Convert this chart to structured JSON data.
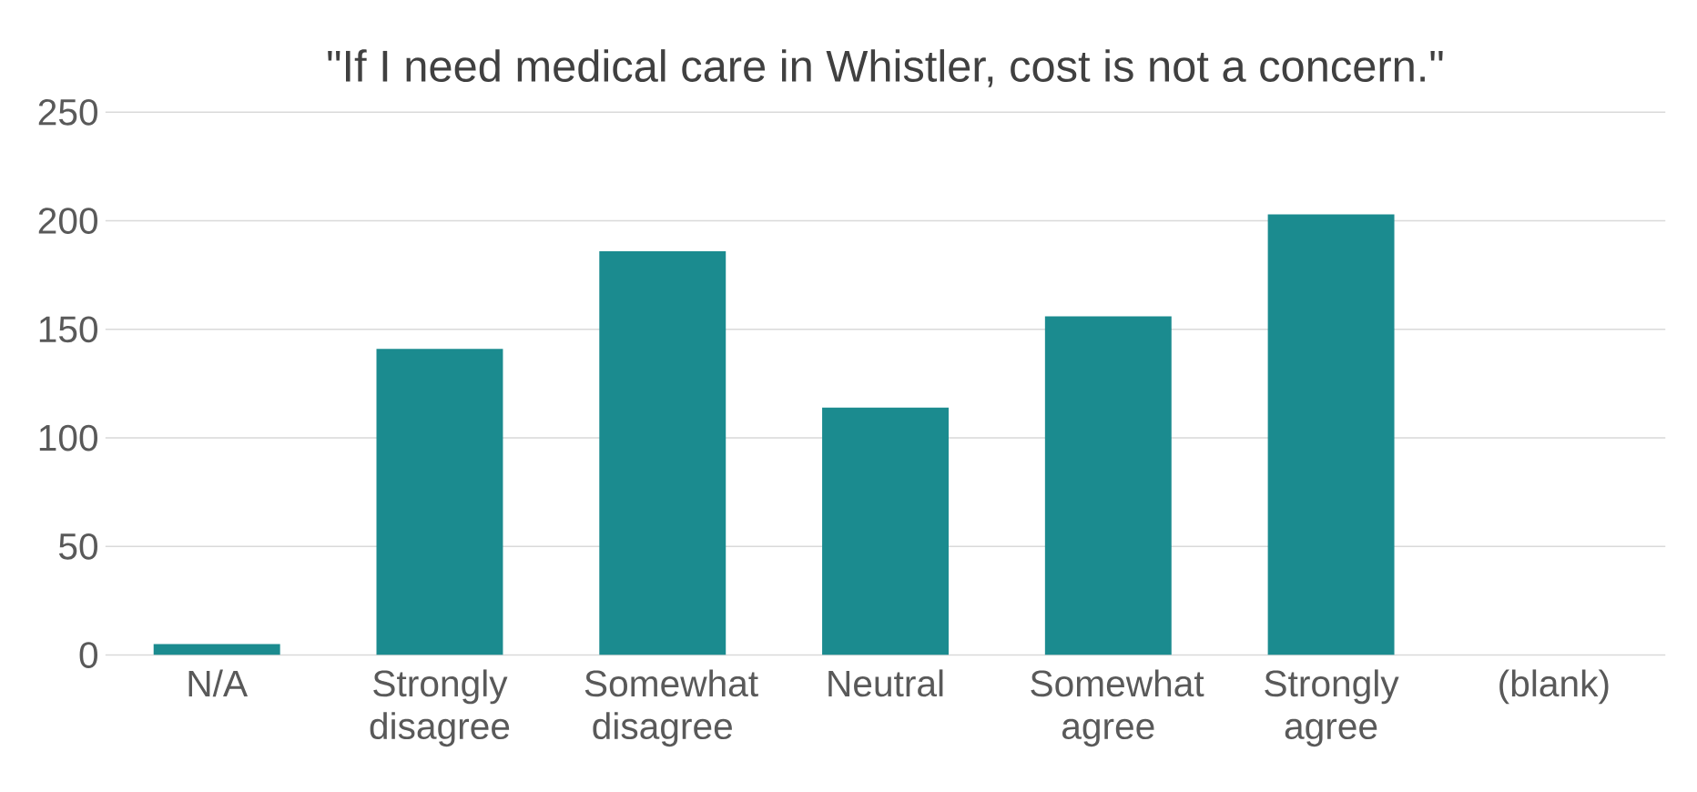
{
  "chart_data": {
    "type": "bar",
    "title": "\"If I need medical care in Whistler, cost is not a concern.\"",
    "categories": [
      "N/A",
      "Strongly disagree",
      "Somewhat disagree",
      "Neutral",
      "Somewhat agree",
      "Strongly agree",
      "(blank)"
    ],
    "values": [
      5,
      141,
      186,
      114,
      156,
      203,
      0
    ],
    "color": "#1b8b8f",
    "ylim": [
      0,
      250
    ],
    "yticks": [
      0,
      50,
      100,
      150,
      200,
      250
    ],
    "grid": "y"
  }
}
